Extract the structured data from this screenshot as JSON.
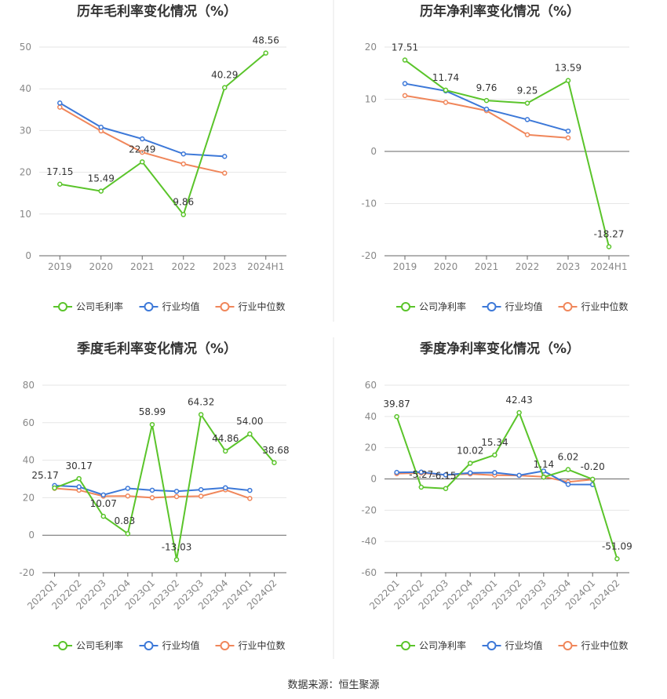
{
  "charts": [
    {
      "type": "line",
      "title": "历年毛利率变化情况（%）",
      "categories": [
        "2019",
        "2020",
        "2021",
        "2022",
        "2023",
        "2024H1"
      ],
      "ylim": [
        0,
        50
      ],
      "yticks": [
        0,
        10,
        20,
        30,
        40,
        50
      ],
      "rotate_x": false,
      "label_series": 0,
      "series": [
        {
          "name": "公司毛利率",
          "color": "#5ac42a",
          "values": [
            17.15,
            15.49,
            22.49,
            9.86,
            40.29,
            48.56
          ],
          "labels": [
            "17.15",
            "15.49",
            "22.49",
            "9.86",
            "40.29",
            "48.56"
          ]
        },
        {
          "name": "行业均值",
          "color": "#3c78d8",
          "values": [
            36.6,
            30.8,
            28.0,
            24.4,
            23.8,
            null
          ]
        },
        {
          "name": "行业中位数",
          "color": "#f0865a",
          "values": [
            35.6,
            29.9,
            24.8,
            22.0,
            19.8,
            null
          ]
        }
      ]
    },
    {
      "type": "line",
      "title": "历年净利率变化情况（%）",
      "categories": [
        "2019",
        "2020",
        "2021",
        "2022",
        "2023",
        "2024H1"
      ],
      "ylim": [
        -20,
        20
      ],
      "yticks": [
        -20,
        -10,
        0,
        10,
        20
      ],
      "rotate_x": false,
      "label_series": 0,
      "series": [
        {
          "name": "公司净利率",
          "color": "#5ac42a",
          "values": [
            17.51,
            11.74,
            9.76,
            9.25,
            13.59,
            -18.27
          ],
          "labels": [
            "17.51",
            "11.74",
            "9.76",
            "9.25",
            "13.59",
            "-18.27"
          ]
        },
        {
          "name": "行业均值",
          "color": "#3c78d8",
          "values": [
            13.0,
            11.6,
            8.1,
            6.1,
            3.9,
            null
          ]
        },
        {
          "name": "行业中位数",
          "color": "#f0865a",
          "values": [
            10.7,
            9.4,
            7.8,
            3.2,
            2.6,
            null
          ]
        }
      ]
    },
    {
      "type": "line",
      "title": "季度毛利率变化情况（%）",
      "categories": [
        "2022Q1",
        "2022Q2",
        "2022Q3",
        "2022Q4",
        "2023Q1",
        "2023Q2",
        "2023Q3",
        "2023Q4",
        "2024Q1",
        "2024Q2"
      ],
      "ylim": [
        -20,
        80
      ],
      "yticks": [
        -20,
        0,
        20,
        40,
        60,
        80
      ],
      "rotate_x": true,
      "label_series": 0,
      "series": [
        {
          "name": "公司毛利率",
          "color": "#5ac42a",
          "values": [
            25.17,
            30.17,
            10.07,
            0.83,
            58.99,
            -13.03,
            64.32,
            44.86,
            54.0,
            38.68
          ],
          "labels": [
            "25.17",
            "30.17",
            "10.07",
            "0.83",
            "58.99",
            "-13.03",
            "64.32",
            "44.86",
            "54.00",
            "38.68"
          ]
        },
        {
          "name": "行业均值",
          "color": "#3c78d8",
          "values": [
            26.5,
            25.8,
            21.5,
            25.0,
            24.0,
            23.4,
            24.3,
            25.3,
            23.9,
            null
          ]
        },
        {
          "name": "行业中位数",
          "color": "#f0865a",
          "values": [
            25.0,
            24.0,
            20.8,
            20.9,
            20.0,
            20.6,
            20.8,
            24.2,
            19.6,
            null
          ]
        }
      ]
    },
    {
      "type": "line",
      "title": "季度净利率变化情况（%）",
      "categories": [
        "2022Q1",
        "2022Q2",
        "2022Q3",
        "2022Q4",
        "2023Q1",
        "2023Q2",
        "2023Q3",
        "2023Q4",
        "2024Q1",
        "2024Q2"
      ],
      "ylim": [
        -60,
        60
      ],
      "yticks": [
        -60,
        -40,
        -20,
        0,
        20,
        40,
        60
      ],
      "rotate_x": true,
      "label_series": 0,
      "series": [
        {
          "name": "公司净利率",
          "color": "#5ac42a",
          "values": [
            39.87,
            -5.27,
            -6.15,
            10.02,
            15.34,
            42.43,
            1.14,
            6.02,
            -0.2,
            -51.09
          ],
          "labels": [
            "39.87",
            "-5.27",
            "-6.15",
            "10.02",
            "15.34",
            "42.43",
            "1.14",
            "6.02",
            "-0.20",
            "-51.09"
          ]
        },
        {
          "name": "行业均值",
          "color": "#3c78d8",
          "values": [
            4.2,
            4.4,
            2.6,
            3.9,
            4.1,
            2.3,
            5.1,
            -3.5,
            -3.6,
            null
          ]
        },
        {
          "name": "行业中位数",
          "color": "#f0865a",
          "values": [
            3.4,
            3.8,
            2.6,
            3.2,
            2.4,
            2.2,
            1.4,
            -1.9,
            -0.4,
            null
          ]
        }
      ]
    }
  ],
  "footer": {
    "source": "数据来源：恒生聚源"
  }
}
